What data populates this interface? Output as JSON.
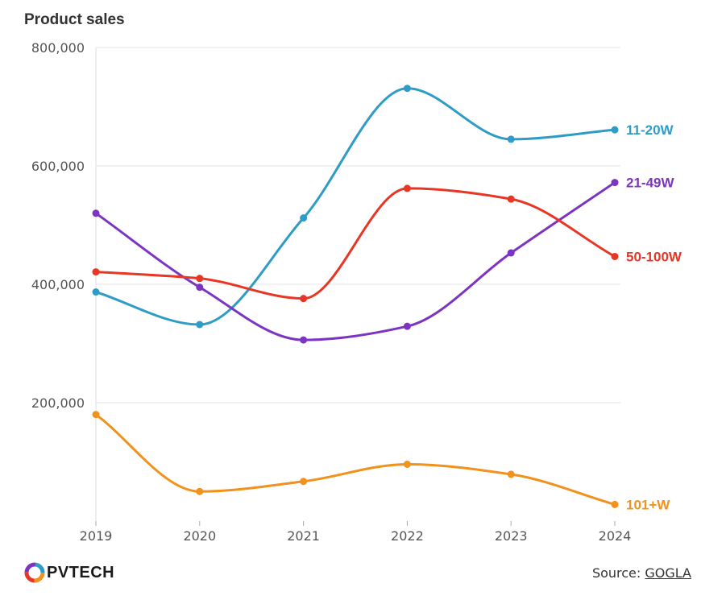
{
  "chart_data": {
    "type": "line",
    "title": "Product sales",
    "xlabel": "",
    "ylabel": "",
    "x": [
      "2019",
      "2020",
      "2021",
      "2022",
      "2023",
      "2024"
    ],
    "ylim": [
      0,
      800000
    ],
    "yticks": [
      200000,
      400000,
      600000,
      800000
    ],
    "ytick_labels": [
      "200,000",
      "400,000",
      "600,000",
      "800,000"
    ],
    "grid": true,
    "legend": "end-of-line labels",
    "series": [
      {
        "name": "11-20W",
        "color": "#2e9cc6",
        "values": [
          387000,
          332000,
          512000,
          731000,
          645000,
          661000
        ]
      },
      {
        "name": "21-49W",
        "color": "#7b35c2",
        "values": [
          520000,
          395000,
          306000,
          329000,
          453000,
          572000
        ]
      },
      {
        "name": "50-100W",
        "color": "#e83524",
        "values": [
          421000,
          410000,
          376000,
          562000,
          544000,
          447000
        ]
      },
      {
        "name": "101+W",
        "color": "#f0921c",
        "values": [
          180000,
          50000,
          67000,
          96000,
          79000,
          28000
        ]
      }
    ]
  },
  "footer": {
    "logo_text": "PVTECH",
    "source_prefix": "Source: ",
    "source_link": "GOGLA"
  }
}
